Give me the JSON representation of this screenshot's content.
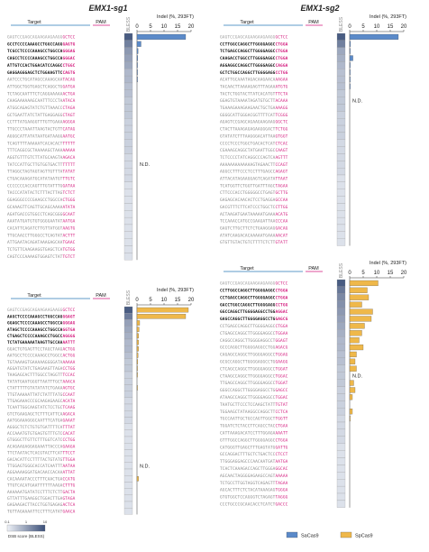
{
  "titles": {
    "sg1": "EMX1-sg1",
    "sg2": "EMX1-sg2"
  },
  "headers": {
    "target": "Target",
    "pam": "PAM",
    "bless": "BLESS",
    "indel": "Indel (%, 293FT)"
  },
  "ticks": [
    "0",
    "5",
    "10",
    "15",
    "20"
  ],
  "nd": "N.D.",
  "legend": {
    "scale_title": "DSB score (BLESS)",
    "scale_ticks": [
      "0.1",
      "1",
      "10"
    ],
    "sacas9": "SaCas9",
    "spcas9": "SpCas9"
  },
  "colors": {
    "sacas9": "#5b8ac9",
    "spcas9": "#efb84a",
    "pam": "#d2177b",
    "bless_low": "#eef1f7",
    "bless_high": "#3b4f78"
  },
  "chart_data": [
    {
      "type": "bar",
      "panel": "EMX1-sg1 SaCas9",
      "xlim": [
        0,
        20
      ],
      "bless": [
        0.92,
        0.7,
        0.55,
        0.5,
        0.45,
        0.35,
        0.35,
        0.3,
        0.3,
        0.25,
        0.25,
        0.25,
        0.2,
        0.2,
        0.2,
        0.2,
        0.2,
        0.15,
        0.15,
        0.15,
        0.15,
        0.1,
        0.1,
        0.1,
        0.1,
        0.1,
        0.1,
        0.1,
        0.1,
        0.1,
        0.1,
        0.1
      ],
      "values": [
        18,
        1.5,
        0.4,
        0.3,
        0.2,
        0.1,
        0.1,
        0,
        0,
        0,
        0,
        0,
        0,
        0,
        0,
        0,
        0,
        0,
        null,
        0,
        0,
        0,
        0,
        0,
        0,
        0,
        0,
        0,
        0,
        0,
        0,
        0
      ],
      "sequences": [
        "GAGTCCGAGCAGAAGAAGAAGGGCTCC",
        "GCCTCCCCAAAGCCTGGCCAGGGAGTG",
        "TCGCCTCCCCAAAGCCTGGCCAGGGAG",
        "CAGCCTCCCCAAAGCCTGGCCAGGGAC",
        "ATTGTCCACTGGACATCCAGGCCTGGC",
        "GAGGAGGGAGCTCTGGAAGTTCCAGTG",
        "AATCCCTGCATAGCCAAAGCAATACAG",
        "ATTGGCTGGTGAGCTCAGGCTGGATGA",
        "TCTAGCAATTTCTCAGGAAAAAACTGA",
        "CAAGAAAAAAGCAATTTCCCTAATACA",
        "ATGGCAGAGTATCTGTTAAACCCTAGA",
        "GCTGAATTATCTATTGAGGAGGCTAGT",
        "CCTTTATGAAGGTTTGTTGAAAAGGGA",
        "TTGCCCTAAATTAAGTACTGTTCATAG",
        "AGGGCATTATATAATGATAAGGAATGC",
        "TCAGTTTTAAAAATCACACACTTTTTT",
        "TTTCAGGCGCTAAAAAGCTAAAAAAAA",
        "AGGTGTTTGTCTTATGCAAGTAAGACA",
        "TATCCATTGCTTGTGGTGACTTTTTTT",
        "TTAGGCTAGTAGTAGTTGTTTATATAT",
        "CTGACAAAGATGCATATAATGTTTGTC",
        "CCCCCCCACCAGTTTGTATTTGGATAA",
        "TACCCATATACTCTTTACTTAGTCTCT",
        "GGAGGGCCCCGAAGCCTGGCCACTGGG",
        "GCAAAGTTCAGTTGCAGCAAAAATATA",
        "AGATGACCGTGGCCTCAGCGGGGCAAT",
        "AAATATGATGTGTGGGGAATATAATGA",
        "CACATTCAGATCTTGTTATGGTAAGTG",
        "TTGCAACCTTGGGCCTCAGTATACTTT",
        "ATTGAATACAGATAAAGAGCAATGAAC",
        "TCTGTTCAAGAAGGTGAGCTCATGTGG",
        "CAGTCCCAAAAGTGGAGTCTATTGTCT"
      ]
    },
    {
      "type": "bar",
      "panel": "EMX1-sg1 SpCas9",
      "xlim": [
        0,
        20
      ],
      "bless": [
        0.92,
        0.72,
        0.5,
        0.45,
        0.4,
        0.35,
        0.35,
        0.3,
        0.25,
        0.25,
        0.2,
        0.2,
        0.2,
        0.2,
        0.15,
        0.15,
        0.15,
        0.15,
        0.1,
        0.1,
        0.1,
        0.1,
        0.1,
        0.1,
        0.1,
        0.1,
        0.1,
        0.1,
        0.1,
        0.1,
        0.1,
        0.1
      ],
      "values": [
        19,
        18,
        1,
        0.8,
        0.6,
        0.6,
        0.6,
        0.4,
        0.3,
        0.2,
        0.2,
        0,
        0.2,
        0,
        0,
        0,
        0,
        0,
        0,
        0,
        0,
        0,
        0,
        0,
        null,
        0,
        0.6,
        0,
        0,
        0,
        0,
        0
      ],
      "sequences": [
        "GAGTCCGAGCAGAAGAAGAAGGGCTCC",
        "AAGCTCCCCAAAGCCTGGCCAGGGAGT",
        "GGAGCTCCCCAAAGCCTGGCCAGGGAG",
        "ATAGCTCCCCAAAGCCTGGCCAGGTGA",
        "CTGAGCTCCCCAAAGCCTGGCCAGGGG",
        "TCTATGAAAAATAAGTTGCCAAAATTT",
        "GGACTGTGAGTTCCTAGCTAAGACTGG",
        "AATGCCTCCCCAAAGCCTGGCCACTGG",
        "TGTAAAAGTGAAAAAGGGGATAAAAAA",
        "AGGATGTATCTGAGAAGTTAGACCTGG",
        "TAAGAGCACTTTGGCCTAGGTTTCCAC",
        "TATATGAATGGGTTAATTTGCTAAACA",
        "CTATTTTTGTATATATCTGAAAAGTGC",
        "TTGTAAAAATTATCTATTTATGCCAAT",
        "TTGAGAAACCCGCAAGAGAAGCACATA",
        "TCAATTGGCAAGTATCTCCTGCTCAAG",
        "GTCTGAAGAGCTCTTTCATTCAAGACA",
        "AATGGAAAGGGCAATTTCATGAGAAAT",
        "AGGGCTCTCTGTGTGATTTTCATTTAT",
        "ACCAAATGTGTGAGTGTTTGTCCACAT",
        "GTGGGCTTGTTCTTTGGTCATCCCTGG",
        "ACAGAAGAGGAGAAATTACCCAGAAGA",
        "TTCTAATACTCACGTACTTCATTTCCT",
        "GACACATTCCTTTTACTGTATGTTGGA",
        "TTGGAGTGGGCACCATCAATTTAATAA",
        "AGGAAAAGGATGACAACCACAAATTAT",
        "CACAAAATACCCTTTCAACTGACCATG",
        "TTGTCACATGAATTTTTTAAGACTTTG",
        "AAAAAATGATATCCTTTCTCTTGACTA",
        "GTTATTTGAAGGCTGGACTTGAGTAGA",
        "GAGAAGACTTACCTGGTGAGAGACTCA",
        "TGTTAGAAAATTCCTTTCATATGAACA"
      ]
    },
    {
      "type": "bar",
      "panel": "EMX1-sg2 SaCas9",
      "xlim": [
        0,
        20
      ],
      "bless": [
        0.92,
        0.7,
        0.45,
        0.4,
        0.35,
        0.3,
        0.3,
        0.3,
        0.25,
        0.25,
        0.25,
        0.2,
        0.2,
        0.2,
        0.2,
        0.15,
        0.15,
        0.15,
        0.15,
        0.15,
        0.1,
        0.1,
        0.1,
        0.1,
        0.1,
        0.1,
        0.1,
        0.1,
        0.1,
        0.1
      ],
      "values": [
        18,
        0.3,
        0.2,
        1.2,
        0.2,
        0.1,
        0.1,
        0.1,
        0,
        null,
        0,
        0,
        0,
        0,
        0,
        0,
        0,
        0,
        0,
        0,
        0,
        0,
        0,
        0,
        0,
        0,
        0,
        0,
        0,
        0
      ],
      "sequences": [
        "GAGTCCGAGCAGAAGAAGAAGGGCTCC",
        "CCTTGGCCAGGCTTGGGGAGGCCTGGA",
        "TCTGAGCCAGGCTTGGGGAGGCCTGGA",
        "CAAGACCTGGCCTTGGGGAGGCCTGGA",
        "AGGAGGCCAGGCTTGGGGAGGCCAGGA",
        "GCTCTGGCCAGGCTTGGGGAGGCCTGG",
        "ACATTGCAAATAGACAAGAACAAAGAA",
        "TACAACTTAAAAGAGTTTAGAAATGTG",
        "TACTCTGGTACTTATCACATGTTTCTA",
        "GGAGTGTAAAATAGATGTGCTTACAAA",
        "TGAAAGAAAGAAGAACTGCTGAAAAGG",
        "GGGGCATTGGGACGGTTTTCATTCGGG",
        "AGAGTCCGAGCAGAAGAAGAAGGGCTC",
        "CTACTTAAAGAGAGAAGGGACTTCTGG",
        "GTATATCTTTAAGGGACATTAAGTGGT",
        "CCCCTCCCTGGCTGACACTCATCTCAC",
        "CGAAAGCAGGCTATGAATTGGCCAAGT",
        "TCTCCCCTATCAGGCCCAGTCAAGTTT",
        "AAAAAAAAAAAAAGTAGAACTTCCAGT",
        "AGGCCTTTCCCTCCTTTGAGCCAGAGT",
        "ATTACATAGAAGGAGTCAGATATTAAT",
        "TCATGGTTCTGGTTGATTTAGCTAGAA",
        "CTTCCCACCTGGGGGCCTGAGTGCTTG",
        "GAGAGCACAACACTCCTGAGGAGCCAA",
        "GACGTTTCTTCATCCCTGGCTCCTTGG",
        "ACTAAGATGAATAAAAATGAAAACATG",
        "TCCAAACCATGCCGAAGATTAACCCAA",
        "GAGTCTTGCTTCTCTGAAGGAGGACAG",
        "ATATCAAGACACAAAAATGAAAAACAT",
        "GTGTTGTACTGTCTTTTCTCTTGTATT"
      ]
    },
    {
      "type": "bar",
      "panel": "EMX1-sg2 SpCas9",
      "xlim": [
        0,
        20
      ],
      "bless": [
        0.92,
        0.75,
        0.65,
        0.6,
        0.55,
        0.5,
        0.45,
        0.4,
        0.35,
        0.35,
        0.3,
        0.3,
        0.25,
        0.25,
        0.25,
        0.2,
        0.2,
        0.2,
        0.2,
        0.15,
        0.15,
        0.15,
        0.15,
        0.1,
        0.1,
        0.1,
        0.1,
        0.1,
        0.1,
        0.1,
        0.1,
        0.1
      ],
      "values": [
        10.5,
        6.5,
        7,
        4.5,
        8.5,
        8,
        5.5,
        4.5,
        3.5,
        5,
        2.5,
        2,
        2.5,
        null,
        1.5,
        2,
        1,
        0,
        1,
        0.2,
        0,
        0,
        0,
        0,
        0,
        0,
        0,
        0,
        0,
        0,
        0,
        0
      ],
      "sequences": [
        "GAGTCCGAGCAGAAGAAGAAGGGCTCC",
        "CCTTGGCCAGGCTTGGGGAGGCCTGGA",
        "CCTGAGCCAGGCTTGGGGAGGCCTGGA",
        "GACCTGGCCAGGCTTGGGGAGGCCTGG",
        "GGCCAGGCTTGGGGAGGCCTGGAGGAC",
        "GAGCCAGGCTTGGGGAGGCCTGGAGCG",
        "CCTGAGCCAGGCTTGGGGAGGCCTGGA",
        "CTGAGCCAGGCTTGGGGAGGCCTGGAA",
        "CAGGCCAGGCTTGGGGAGGCCTGGAGT",
        "GCCCAGGCTTGGGGAGGCCTGGAGACG",
        "CAGAGCCAGGCTTGGGGAGGCCTGGAG",
        "GCGCCAGGCTTGGGGAGGCCTGGAAGG",
        "CTCAGCCAGGCTTGGGGAGGCCTGGAT",
        "CTAAGCCAGGCTTGGGGAGGCCTGGAC",
        "TTGAGCCAGGCTTGGGGAGGCCTGGAT",
        "GGGCCAGGCTTGGGGAGGCCTGGAGCC",
        "ATAAGCCAGGCTTGGGGAGGCCTGGAC",
        "TAATGCTTCCCTCCAAGCTATTTGTAT",
        "TGGAAGCTATAAGGCCAGGCTTCCTCA",
        "TGCCAATTGCTGCCAGTTGGCTTGGTT",
        "TGGATCTCTACCTTCAGCCTACCTGAA",
        "CATTAAAGACATCCTTTGGAGAAAATT",
        "GTTTGGCCAGGCTTGGGGAGGCCTGGA",
        "CATGGGTTGAGCTTTGAGTATGGATTG",
        "GCCAGGACTTTGCTCTGACTCCCTCCT",
        "TTGGGAGGAGCCCAACAATGATAATGA",
        "TCACTCAAAGACCAGCTTGGGAGGCAC",
        "AGCAACTAGGGGAGAAGCCAGTAAAAA",
        "TCTGCCTTGGTAGGTCAGAGTTTAGAA",
        "AGCACTTTCTCTACATAAAGAGTGGGA",
        "GTGTGGCTCCAGGGTCTAGAGTTAGGG",
        "CCCTGCCCGCAACACCTCATCTGACCC"
      ]
    }
  ]
}
